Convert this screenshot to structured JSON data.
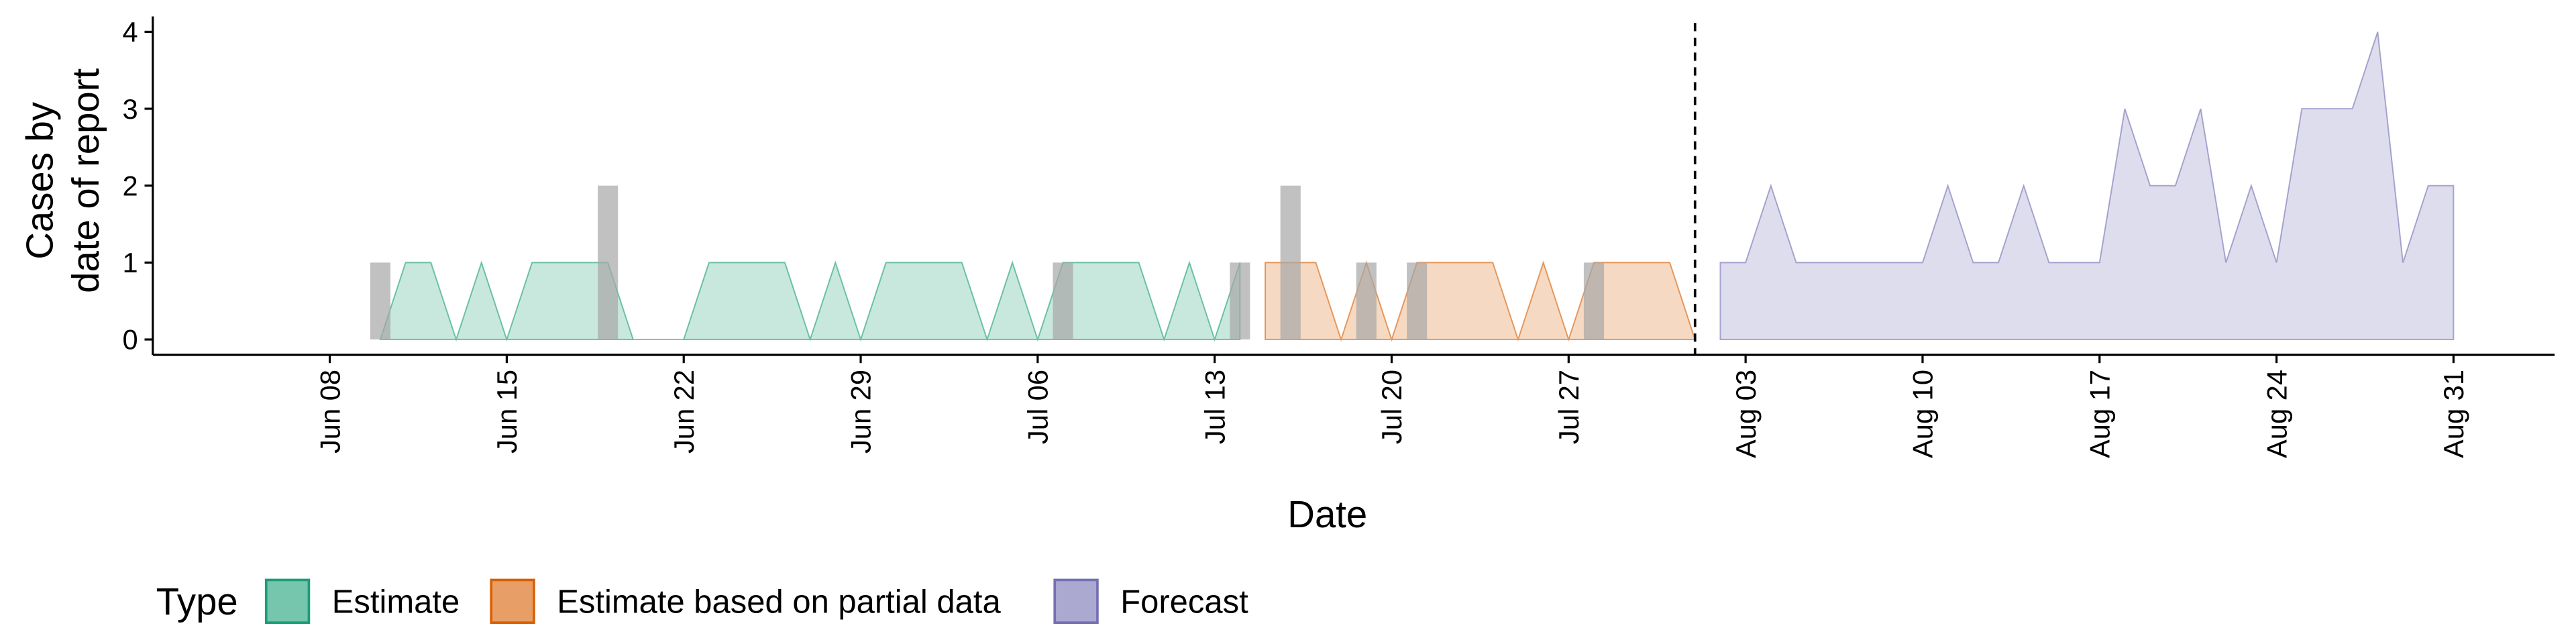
{
  "chart_data": {
    "type": "area",
    "x_label": "Date",
    "y_label": [
      "Cases by",
      "date of report"
    ],
    "legend_title": "Type",
    "xlim": [
      "Jun 01",
      "Sep 04"
    ],
    "xticks": [
      "Jun 08",
      "Jun 15",
      "Jun 22",
      "Jun 29",
      "Jul 06",
      "Jul 13",
      "Jul 20",
      "Jul 27",
      "Aug 03",
      "Aug 10",
      "Aug 17",
      "Aug 24",
      "Aug 31"
    ],
    "ylim": [
      -0.2,
      4.2
    ],
    "yticks": [
      0,
      1,
      2,
      3,
      4
    ],
    "vline": "Aug 01",
    "bars": {
      "color": "#a6a6a6",
      "x": [
        "Jun 10",
        "Jun 19",
        "Jul 07",
        "Jul 14",
        "Jul 16",
        "Jul 19",
        "Jul 21",
        "Jul 28"
      ],
      "values": [
        1,
        2,
        1,
        1,
        2,
        1,
        1,
        1
      ]
    },
    "series": [
      {
        "name": "Estimate",
        "color": "#1b9e77",
        "x": [
          "Jun 10",
          "Jun 11",
          "Jun 12",
          "Jun 13",
          "Jun 14",
          "Jun 15",
          "Jun 16",
          "Jun 17",
          "Jun 18",
          "Jun 19",
          "Jun 20",
          "Jun 21",
          "Jun 22",
          "Jun 23",
          "Jun 24",
          "Jun 25",
          "Jun 26",
          "Jun 27",
          "Jun 28",
          "Jun 29",
          "Jun 30",
          "Jul 01",
          "Jul 02",
          "Jul 03",
          "Jul 04",
          "Jul 05",
          "Jul 06",
          "Jul 07",
          "Jul 08",
          "Jul 09",
          "Jul 10",
          "Jul 11",
          "Jul 12",
          "Jul 13",
          "Jul 14"
        ],
        "values": [
          0,
          1,
          1,
          0,
          1,
          0,
          1,
          1,
          1,
          1,
          0,
          0,
          0,
          1,
          1,
          1,
          1,
          0,
          1,
          0,
          1,
          1,
          1,
          1,
          0,
          1,
          0,
          1,
          1,
          1,
          1,
          0,
          1,
          0,
          1
        ]
      },
      {
        "name": "Estimate based on partial data",
        "color": "#d95f02",
        "x": [
          "Jul 15",
          "Jul 16",
          "Jul 17",
          "Jul 18",
          "Jul 19",
          "Jul 20",
          "Jul 21",
          "Jul 22",
          "Jul 23",
          "Jul 24",
          "Jul 25",
          "Jul 26",
          "Jul 27",
          "Jul 28",
          "Jul 29",
          "Jul 30",
          "Jul 31",
          "Aug 01"
        ],
        "values": [
          1,
          1,
          1,
          0,
          1,
          0,
          1,
          1,
          1,
          1,
          0,
          1,
          0,
          1,
          1,
          1,
          1,
          0
        ]
      },
      {
        "name": "Forecast",
        "color": "#7570b3",
        "x": [
          "Aug 02",
          "Aug 03",
          "Aug 04",
          "Aug 05",
          "Aug 06",
          "Aug 07",
          "Aug 08",
          "Aug 09",
          "Aug 10",
          "Aug 11",
          "Aug 12",
          "Aug 13",
          "Aug 14",
          "Aug 15",
          "Aug 16",
          "Aug 17",
          "Aug 18",
          "Aug 19",
          "Aug 20",
          "Aug 21",
          "Aug 22",
          "Aug 23",
          "Aug 24",
          "Aug 25",
          "Aug 26",
          "Aug 27",
          "Aug 28",
          "Aug 29",
          "Aug 30",
          "Aug 31"
        ],
        "values": [
          1,
          1,
          2,
          1,
          1,
          1,
          1,
          1,
          1,
          2,
          1,
          1,
          2,
          1,
          1,
          1,
          3,
          2,
          2,
          3,
          1,
          2,
          1,
          3,
          3,
          3,
          4,
          1,
          2,
          2
        ]
      }
    ]
  }
}
